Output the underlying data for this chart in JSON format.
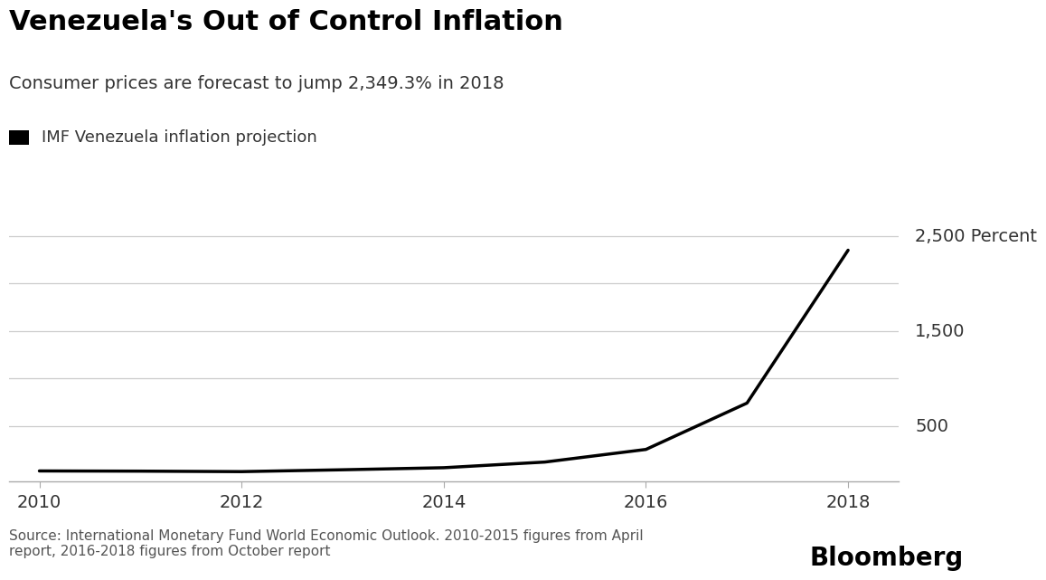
{
  "title": "Venezuela's Out of Control Inflation",
  "subtitle": "Consumer prices are forecast to jump 2,349.3% in 2018",
  "legend_label": "IMF Venezuela inflation projection",
  "source_text": "Source: International Monetary Fund World Economic Outlook. 2010-2015 figures from April\nreport, 2016-2018 figures from October report",
  "bloomberg_text": "Bloomberg",
  "years": [
    2010,
    2011,
    2012,
    2013,
    2014,
    2015,
    2016,
    2017,
    2018
  ],
  "inflation": [
    28.2,
    26.1,
    21.1,
    40.6,
    62.2,
    121.7,
    254.4,
    741.9,
    2349.3
  ],
  "line_color": "#000000",
  "background_color": "#ffffff",
  "grid_color": "#cccccc",
  "yticks": [
    500,
    1000,
    1500,
    2000,
    2500
  ],
  "ytick_labels_shown": [
    500,
    1500
  ],
  "xlim": [
    2009.7,
    2018.5
  ],
  "ylim": [
    -80,
    2750
  ],
  "title_fontsize": 22,
  "subtitle_fontsize": 14,
  "legend_fontsize": 13,
  "tick_fontsize": 14,
  "source_fontsize": 11,
  "bloomberg_fontsize": 20,
  "top_label": "2,500 Percent"
}
